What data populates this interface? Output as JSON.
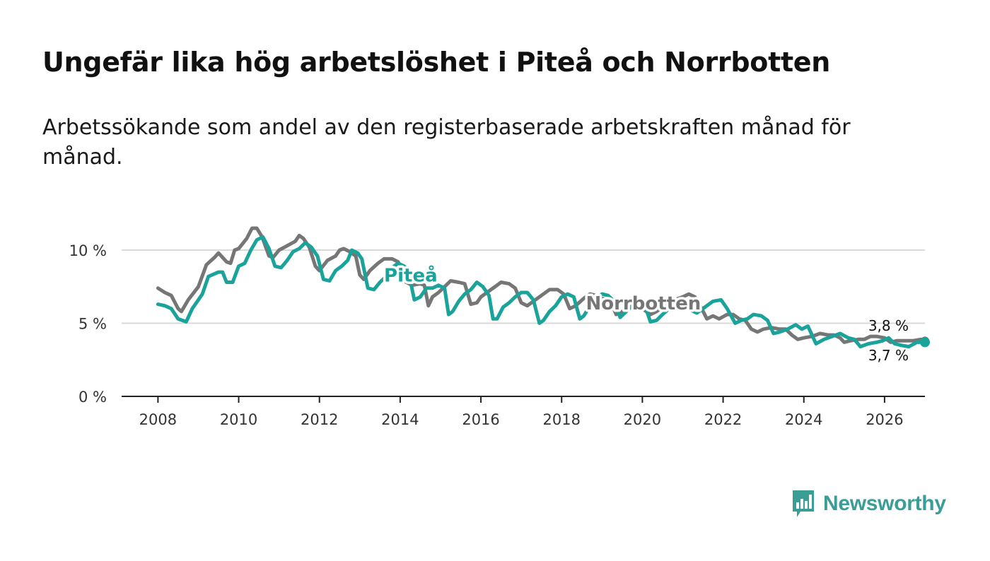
{
  "title": "Ungefär lika hög arbetslöshet i Piteå och Norrbotten",
  "subtitle": "Arbetssökande som andel av den registerbaserade arbetskraften månad för månad.",
  "brand": {
    "name": "Newsworthy",
    "icon": "bar-chart-speech-bubble-icon"
  },
  "colors": {
    "pitea": "#1aa39a",
    "norrbotten": "#767676",
    "grid": "#d9d9d9",
    "axis": "#222222"
  },
  "chart_data": {
    "type": "line",
    "title": "Ungefär lika hög arbetslöshet i Piteå och Norrbotten",
    "xlabel": "",
    "ylabel": "",
    "x_range": [
      2007.1,
      2027.0
    ],
    "ylim": [
      0,
      10
    ],
    "y_ticks": [
      {
        "value": 0,
        "label": "0 %"
      },
      {
        "value": 5,
        "label": "5 %"
      },
      {
        "value": 10,
        "label": "10 %"
      }
    ],
    "x_ticks": [
      "2008",
      "2010",
      "2012",
      "2014",
      "2016",
      "2018",
      "2020",
      "2022",
      "2024",
      "2026"
    ],
    "grid": true,
    "series": [
      {
        "name": "Norrbotten",
        "label": "Norrbotten",
        "end_label": "3,8 %",
        "points": [
          [
            2008.0,
            7.4
          ],
          [
            2008.17,
            7.1
          ],
          [
            2008.33,
            6.9
          ],
          [
            2008.5,
            6.0
          ],
          [
            2008.58,
            5.8
          ],
          [
            2008.75,
            6.6
          ],
          [
            2009.0,
            7.5
          ],
          [
            2009.2,
            9.0
          ],
          [
            2009.4,
            9.5
          ],
          [
            2009.5,
            9.8
          ],
          [
            2009.7,
            9.2
          ],
          [
            2009.8,
            9.1
          ],
          [
            2009.9,
            10.0
          ],
          [
            2010.0,
            10.1
          ],
          [
            2010.2,
            10.8
          ],
          [
            2010.33,
            11.5
          ],
          [
            2010.45,
            11.5
          ],
          [
            2010.58,
            10.9
          ],
          [
            2010.75,
            9.6
          ],
          [
            2010.85,
            9.5
          ],
          [
            2011.0,
            10.0
          ],
          [
            2011.2,
            10.3
          ],
          [
            2011.4,
            10.6
          ],
          [
            2011.5,
            11.0
          ],
          [
            2011.6,
            10.8
          ],
          [
            2011.75,
            10.2
          ],
          [
            2011.9,
            8.9
          ],
          [
            2012.0,
            8.6
          ],
          [
            2012.2,
            9.3
          ],
          [
            2012.4,
            9.6
          ],
          [
            2012.5,
            10.0
          ],
          [
            2012.6,
            10.1
          ],
          [
            2012.75,
            9.9
          ],
          [
            2012.9,
            9.6
          ],
          [
            2013.0,
            8.3
          ],
          [
            2013.1,
            8.0
          ],
          [
            2013.25,
            8.6
          ],
          [
            2013.45,
            9.1
          ],
          [
            2013.6,
            9.4
          ],
          [
            2013.8,
            9.4
          ],
          [
            2013.95,
            9.2
          ],
          [
            2014.05,
            8.6
          ],
          [
            2014.15,
            7.8
          ],
          [
            2014.3,
            7.6
          ],
          [
            2014.5,
            7.7
          ],
          [
            2014.6,
            7.6
          ],
          [
            2014.7,
            6.2
          ],
          [
            2014.8,
            6.8
          ],
          [
            2014.95,
            7.1
          ],
          [
            2015.1,
            7.5
          ],
          [
            2015.25,
            7.9
          ],
          [
            2015.45,
            7.8
          ],
          [
            2015.6,
            7.7
          ],
          [
            2015.75,
            6.3
          ],
          [
            2015.9,
            6.4
          ],
          [
            2016.0,
            6.8
          ],
          [
            2016.15,
            7.1
          ],
          [
            2016.35,
            7.5
          ],
          [
            2016.5,
            7.8
          ],
          [
            2016.7,
            7.7
          ],
          [
            2016.85,
            7.4
          ],
          [
            2017.0,
            6.4
          ],
          [
            2017.15,
            6.2
          ],
          [
            2017.35,
            6.6
          ],
          [
            2017.55,
            7.0
          ],
          [
            2017.7,
            7.3
          ],
          [
            2017.9,
            7.3
          ],
          [
            2018.05,
            7.0
          ],
          [
            2018.2,
            6.0
          ],
          [
            2018.35,
            6.2
          ],
          [
            2018.55,
            6.7
          ],
          [
            2018.7,
            7.0
          ],
          [
            2018.85,
            6.9
          ],
          [
            2019.0,
            6.7
          ],
          [
            2019.2,
            6.6
          ],
          [
            2019.35,
            5.6
          ],
          [
            2019.5,
            5.8
          ],
          [
            2019.65,
            6.1
          ],
          [
            2019.8,
            6.1
          ],
          [
            2020.0,
            6.0
          ],
          [
            2020.2,
            5.6
          ],
          [
            2020.35,
            5.8
          ],
          [
            2020.6,
            6.3
          ],
          [
            2020.8,
            6.6
          ],
          [
            2021.0,
            6.8
          ],
          [
            2021.15,
            7.0
          ],
          [
            2021.3,
            6.8
          ],
          [
            2021.45,
            6.1
          ],
          [
            2021.6,
            5.3
          ],
          [
            2021.75,
            5.5
          ],
          [
            2021.9,
            5.3
          ],
          [
            2022.1,
            5.6
          ],
          [
            2022.25,
            5.6
          ],
          [
            2022.4,
            5.3
          ],
          [
            2022.55,
            5.2
          ],
          [
            2022.7,
            4.6
          ],
          [
            2022.85,
            4.4
          ],
          [
            2023.0,
            4.6
          ],
          [
            2023.2,
            4.7
          ],
          [
            2023.4,
            4.6
          ],
          [
            2023.55,
            4.6
          ],
          [
            2023.7,
            4.2
          ],
          [
            2023.85,
            3.9
          ],
          [
            2024.0,
            4.0
          ],
          [
            2024.2,
            4.1
          ],
          [
            2024.4,
            4.3
          ],
          [
            2024.6,
            4.2
          ],
          [
            2024.75,
            4.2
          ],
          [
            2024.9,
            4.0
          ],
          [
            2025.0,
            3.7
          ],
          [
            2025.15,
            3.8
          ],
          [
            2025.35,
            3.9
          ],
          [
            2025.5,
            3.9
          ],
          [
            2025.65,
            4.1
          ],
          [
            2025.8,
            4.1
          ],
          [
            2026.0,
            4.0
          ],
          [
            2026.15,
            3.7
          ],
          [
            2026.3,
            3.8
          ],
          [
            2026.5,
            3.8
          ],
          [
            2026.7,
            3.8
          ],
          [
            2026.9,
            3.9
          ],
          [
            2027.0,
            3.8
          ]
        ]
      },
      {
        "name": "Piteå",
        "label": "Piteå",
        "end_label": "3,7 %",
        "points": [
          [
            2008.0,
            6.3
          ],
          [
            2008.17,
            6.2
          ],
          [
            2008.33,
            6.0
          ],
          [
            2008.5,
            5.3
          ],
          [
            2008.7,
            5.1
          ],
          [
            2008.85,
            6.0
          ],
          [
            2009.0,
            6.6
          ],
          [
            2009.1,
            7.0
          ],
          [
            2009.25,
            8.2
          ],
          [
            2009.5,
            8.5
          ],
          [
            2009.6,
            8.5
          ],
          [
            2009.7,
            7.8
          ],
          [
            2009.85,
            7.8
          ],
          [
            2010.0,
            8.9
          ],
          [
            2010.15,
            9.1
          ],
          [
            2010.3,
            10.0
          ],
          [
            2010.45,
            10.7
          ],
          [
            2010.6,
            10.9
          ],
          [
            2010.75,
            10.1
          ],
          [
            2010.9,
            8.9
          ],
          [
            2011.05,
            8.8
          ],
          [
            2011.2,
            9.3
          ],
          [
            2011.35,
            9.9
          ],
          [
            2011.5,
            10.1
          ],
          [
            2011.65,
            10.5
          ],
          [
            2011.8,
            10.2
          ],
          [
            2011.95,
            9.6
          ],
          [
            2012.1,
            8.0
          ],
          [
            2012.25,
            7.9
          ],
          [
            2012.4,
            8.6
          ],
          [
            2012.55,
            8.9
          ],
          [
            2012.7,
            9.3
          ],
          [
            2012.8,
            10.0
          ],
          [
            2012.95,
            9.8
          ],
          [
            2013.05,
            9.4
          ],
          [
            2013.2,
            7.4
          ],
          [
            2013.35,
            7.3
          ],
          [
            2013.5,
            7.8
          ],
          [
            2013.65,
            8.2
          ],
          [
            2013.85,
            8.9
          ],
          [
            2013.95,
            9.1
          ],
          [
            2014.1,
            8.9
          ],
          [
            2014.2,
            8.6
          ],
          [
            2014.35,
            6.6
          ],
          [
            2014.5,
            6.8
          ],
          [
            2014.65,
            7.4
          ],
          [
            2014.8,
            7.4
          ],
          [
            2014.95,
            7.6
          ],
          [
            2015.1,
            7.4
          ],
          [
            2015.2,
            5.6
          ],
          [
            2015.3,
            5.8
          ],
          [
            2015.45,
            6.5
          ],
          [
            2015.6,
            7.0
          ],
          [
            2015.75,
            7.3
          ],
          [
            2015.9,
            7.8
          ],
          [
            2016.05,
            7.5
          ],
          [
            2016.2,
            6.9
          ],
          [
            2016.3,
            5.3
          ],
          [
            2016.4,
            5.3
          ],
          [
            2016.55,
            6.1
          ],
          [
            2016.7,
            6.4
          ],
          [
            2016.85,
            6.8
          ],
          [
            2017.0,
            7.1
          ],
          [
            2017.15,
            7.1
          ],
          [
            2017.3,
            6.6
          ],
          [
            2017.45,
            5.0
          ],
          [
            2017.55,
            5.2
          ],
          [
            2017.7,
            5.8
          ],
          [
            2017.85,
            6.2
          ],
          [
            2018.0,
            6.8
          ],
          [
            2018.15,
            7.0
          ],
          [
            2018.3,
            6.8
          ],
          [
            2018.45,
            5.3
          ],
          [
            2018.55,
            5.5
          ],
          [
            2018.7,
            6.2
          ],
          [
            2018.85,
            6.7
          ],
          [
            2019.0,
            7.0
          ],
          [
            2019.15,
            6.9
          ],
          [
            2019.3,
            6.5
          ],
          [
            2019.45,
            5.4
          ],
          [
            2019.6,
            5.8
          ],
          [
            2019.75,
            6.2
          ],
          [
            2019.9,
            6.6
          ],
          [
            2020.05,
            6.3
          ],
          [
            2020.2,
            5.1
          ],
          [
            2020.35,
            5.2
          ],
          [
            2020.5,
            5.6
          ],
          [
            2020.7,
            6.1
          ],
          [
            2020.9,
            6.5
          ],
          [
            2021.05,
            6.6
          ],
          [
            2021.2,
            5.9
          ],
          [
            2021.35,
            5.7
          ],
          [
            2021.55,
            6.1
          ],
          [
            2021.75,
            6.5
          ],
          [
            2021.95,
            6.6
          ],
          [
            2022.1,
            6.0
          ],
          [
            2022.3,
            5.0
          ],
          [
            2022.45,
            5.2
          ],
          [
            2022.6,
            5.3
          ],
          [
            2022.75,
            5.6
          ],
          [
            2022.95,
            5.5
          ],
          [
            2023.1,
            5.2
          ],
          [
            2023.25,
            4.3
          ],
          [
            2023.4,
            4.4
          ],
          [
            2023.6,
            4.6
          ],
          [
            2023.8,
            4.9
          ],
          [
            2023.95,
            4.6
          ],
          [
            2024.1,
            4.8
          ],
          [
            2024.3,
            3.6
          ],
          [
            2024.5,
            3.9
          ],
          [
            2024.7,
            4.1
          ],
          [
            2024.9,
            4.3
          ],
          [
            2025.1,
            4.0
          ],
          [
            2025.25,
            3.9
          ],
          [
            2025.4,
            3.4
          ],
          [
            2025.6,
            3.6
          ],
          [
            2025.8,
            3.7
          ],
          [
            2025.95,
            3.8
          ],
          [
            2026.1,
            4.0
          ],
          [
            2026.25,
            3.6
          ],
          [
            2026.4,
            3.5
          ],
          [
            2026.6,
            3.4
          ],
          [
            2026.8,
            3.7
          ],
          [
            2027.0,
            3.7
          ]
        ]
      }
    ]
  }
}
